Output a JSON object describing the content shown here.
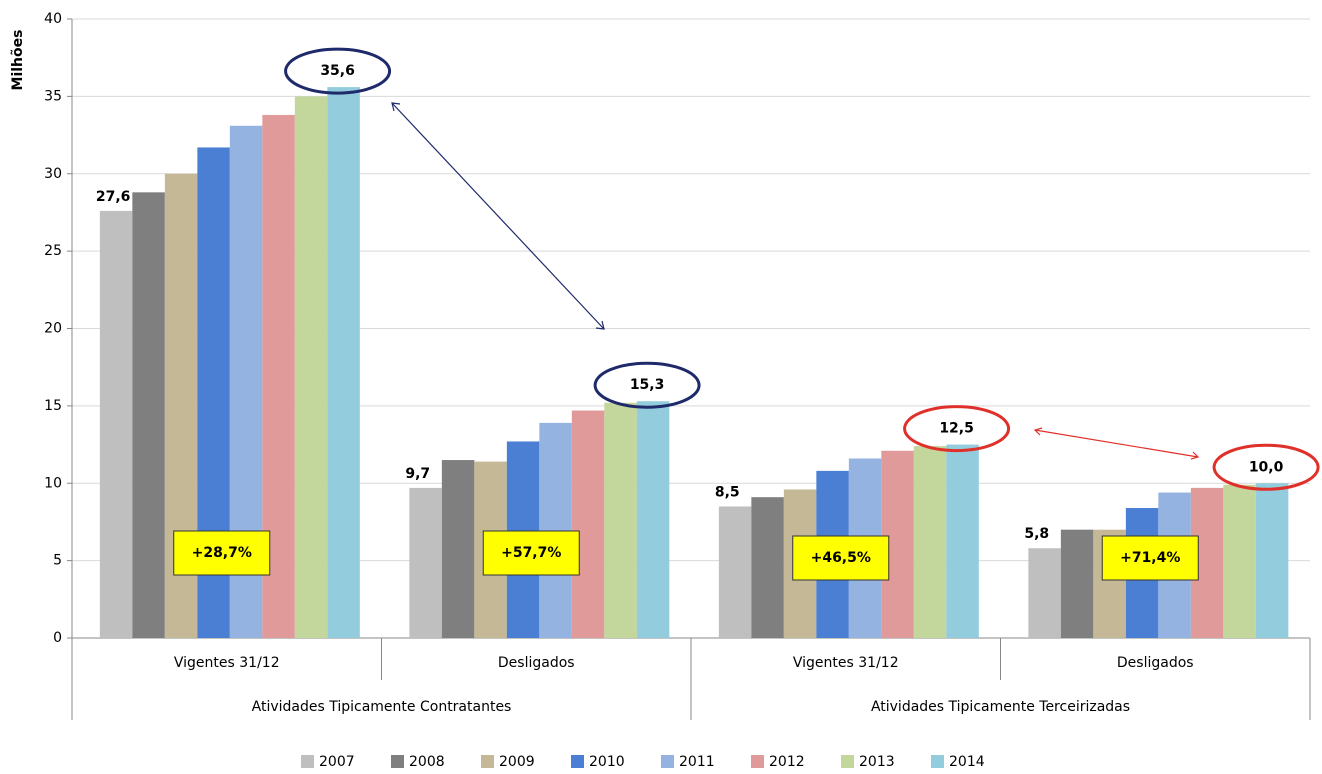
{
  "chart_data": {
    "type": "bar",
    "y_label": "Milhões",
    "categories": [
      "Vigentes 31/12",
      "Desligados",
      "Vigentes 31/12",
      "Desligados"
    ],
    "groups": [
      {
        "label": "Atividades Tipicamente Contratantes",
        "span": 2
      },
      {
        "label": "Atividades Tipicamente Terceirizadas",
        "span": 2
      }
    ],
    "series": [
      {
        "name": "2007",
        "color": "#bfbfbf",
        "values": [
          27.6,
          9.7,
          8.5,
          5.8
        ],
        "value_labels": [
          "27,6",
          "9,7",
          "8,5",
          "5,8"
        ]
      },
      {
        "name": "2008",
        "color": "#7f7f7f",
        "values": [
          28.8,
          11.5,
          9.1,
          7.0
        ]
      },
      {
        "name": "2009",
        "color": "#c4b896",
        "values": [
          30.0,
          11.4,
          9.6,
          7.0
        ]
      },
      {
        "name": "2010",
        "color": "#4a7fd4",
        "values": [
          31.7,
          12.7,
          10.8,
          8.4
        ]
      },
      {
        "name": "2011",
        "color": "#95b3e0",
        "values": [
          33.1,
          13.9,
          11.6,
          9.4
        ]
      },
      {
        "name": "2012",
        "color": "#e09a9a",
        "values": [
          33.8,
          14.7,
          12.1,
          9.7
        ]
      },
      {
        "name": "2013",
        "color": "#c3d69b",
        "values": [
          35.0,
          15.2,
          12.4,
          9.9
        ]
      },
      {
        "name": "2014",
        "color": "#93cddd",
        "values": [
          35.6,
          15.3,
          12.5,
          10.0
        ],
        "value_labels": [
          "35,6",
          "15,3",
          "12,5",
          "10,0"
        ]
      }
    ],
    "annotations": [
      "+28,7%",
      "+57,7%",
      "+46,5%",
      "+71,4%"
    ],
    "ylim": [
      0,
      40
    ],
    "yticks": [
      0,
      5,
      10,
      15,
      20,
      25,
      30,
      35,
      40
    ],
    "grid": true
  }
}
